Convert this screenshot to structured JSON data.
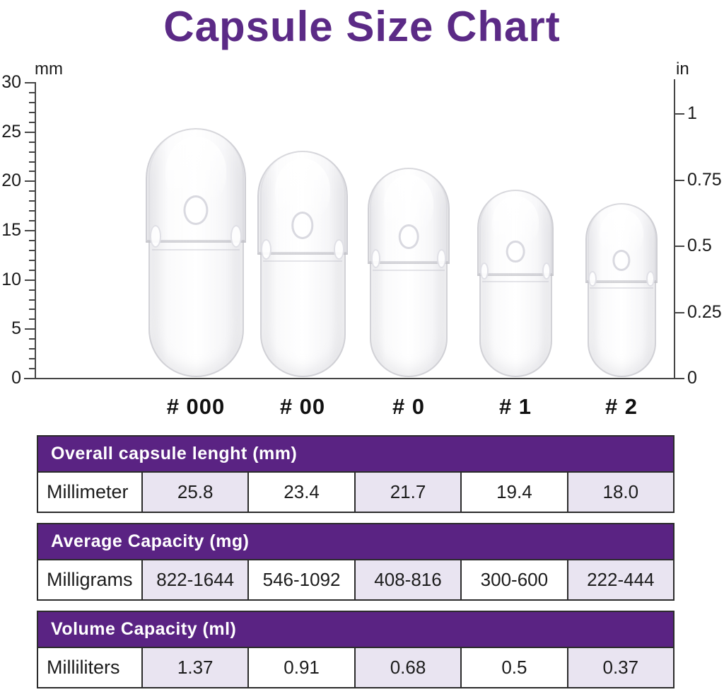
{
  "title": "Capsule Size Chart",
  "colors": {
    "title_purple": "#5b2a86",
    "header_purple": "#5a2383",
    "lavender": "#e9e4f1",
    "border_dark": "#2b2b2b",
    "axis": "#454545"
  },
  "chart": {
    "left_axis": {
      "unit": "mm",
      "major_tick_labels": [
        "0",
        "5",
        "10",
        "15",
        "20",
        "25",
        "30"
      ],
      "range_mm": [
        0,
        30
      ],
      "minor_tick_step_mm": 1
    },
    "right_axis": {
      "unit": "in",
      "tick_labels": [
        "0",
        "0.25",
        "0.5",
        "0.75",
        "1"
      ],
      "range_in": [
        0,
        1
      ]
    },
    "capsules": [
      {
        "label": "# 000",
        "length_mm": 25.8
      },
      {
        "label": "# 00",
        "length_mm": 23.4
      },
      {
        "label": "# 0",
        "length_mm": 21.7
      },
      {
        "label": "# 1",
        "length_mm": 19.4
      },
      {
        "label": "# 2",
        "length_mm": 18.0
      }
    ]
  },
  "tables": [
    {
      "header": "Overall capsule lenght (mm)",
      "row_label": "Millimeter",
      "values": [
        "25.8",
        "23.4",
        "21.7",
        "19.4",
        "18.0"
      ]
    },
    {
      "header": "Average Capacity (mg)",
      "row_label": "Milligrams",
      "values": [
        "822-1644",
        "546-1092",
        "408-816",
        "300-600",
        "222-444"
      ]
    },
    {
      "header": "Volume Capacity (ml)",
      "row_label": "Milliliters",
      "values": [
        "1.37",
        "0.91",
        "0.68",
        "0.5",
        "0.37"
      ]
    }
  ],
  "chart_data": {
    "type": "bar",
    "title": "Capsule Size Chart",
    "categories": [
      "# 000",
      "# 00",
      "# 0",
      "# 1",
      "# 2"
    ],
    "series": [
      {
        "name": "Overall capsule lenght (mm)",
        "values": [
          25.8,
          23.4,
          21.7,
          19.4,
          18.0
        ]
      },
      {
        "name": "Average Capacity (mg)",
        "values": [
          "822-1644",
          "546-1092",
          "408-816",
          "300-600",
          "222-444"
        ]
      },
      {
        "name": "Volume Capacity (ml)",
        "values": [
          1.37,
          0.91,
          0.68,
          0.5,
          0.37
        ]
      }
    ],
    "left_axis": {
      "label": "mm",
      "range": [
        0,
        30
      ],
      "major_ticks": [
        0,
        5,
        10,
        15,
        20,
        25,
        30
      ],
      "minor_tick_step": 1
    },
    "right_axis": {
      "label": "in",
      "range": [
        0,
        1
      ],
      "ticks": [
        0,
        0.25,
        0.5,
        0.75,
        1
      ]
    },
    "legend": "none",
    "grid": false
  }
}
